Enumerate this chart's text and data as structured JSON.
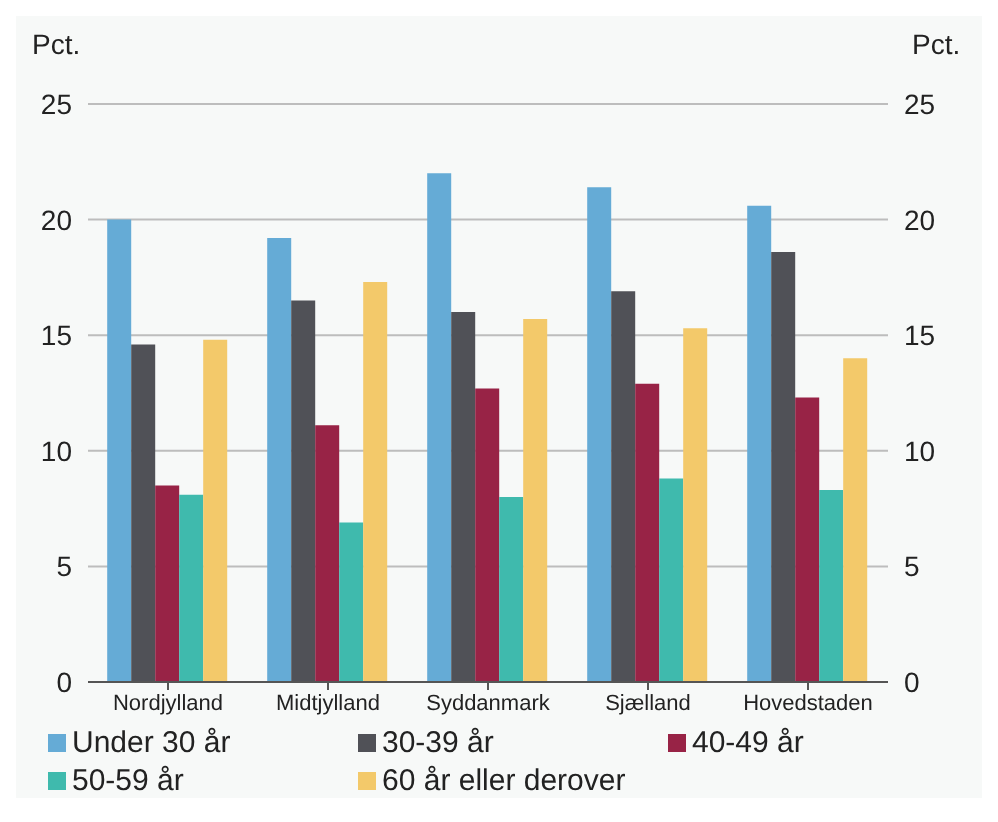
{
  "chart_data": {
    "type": "bar",
    "ylabel": "Pct.",
    "y2label": "Pct.",
    "categories": [
      "Nordjylland",
      "Midtjylland",
      "Syddanmark",
      "Sjælland",
      "Hovedstaden"
    ],
    "series": [
      {
        "name": "Under 30 år",
        "color": "#65abd6",
        "values": [
          20.0,
          19.2,
          22.0,
          21.4,
          20.6
        ]
      },
      {
        "name": "30-39 år",
        "color": "#505157",
        "values": [
          14.6,
          16.5,
          16.0,
          16.9,
          18.6
        ]
      },
      {
        "name": "40-49 år",
        "color": "#982346",
        "values": [
          8.5,
          11.1,
          12.7,
          12.9,
          12.3
        ]
      },
      {
        "name": "50-59 år",
        "color": "#3fbaad",
        "values": [
          8.1,
          6.9,
          8.0,
          8.8,
          8.3
        ]
      },
      {
        "name": "60 år eller derover",
        "color": "#f3c96a",
        "values": [
          14.8,
          17.3,
          15.7,
          15.3,
          14.0
        ]
      }
    ],
    "ylim": [
      0,
      25
    ],
    "yticks": [
      0,
      5,
      10,
      15,
      20,
      25
    ],
    "y2lim": [
      0,
      25
    ],
    "y2ticks": [
      0,
      5,
      10,
      15,
      20,
      25
    ],
    "grid": "y",
    "legend": "bottom"
  }
}
